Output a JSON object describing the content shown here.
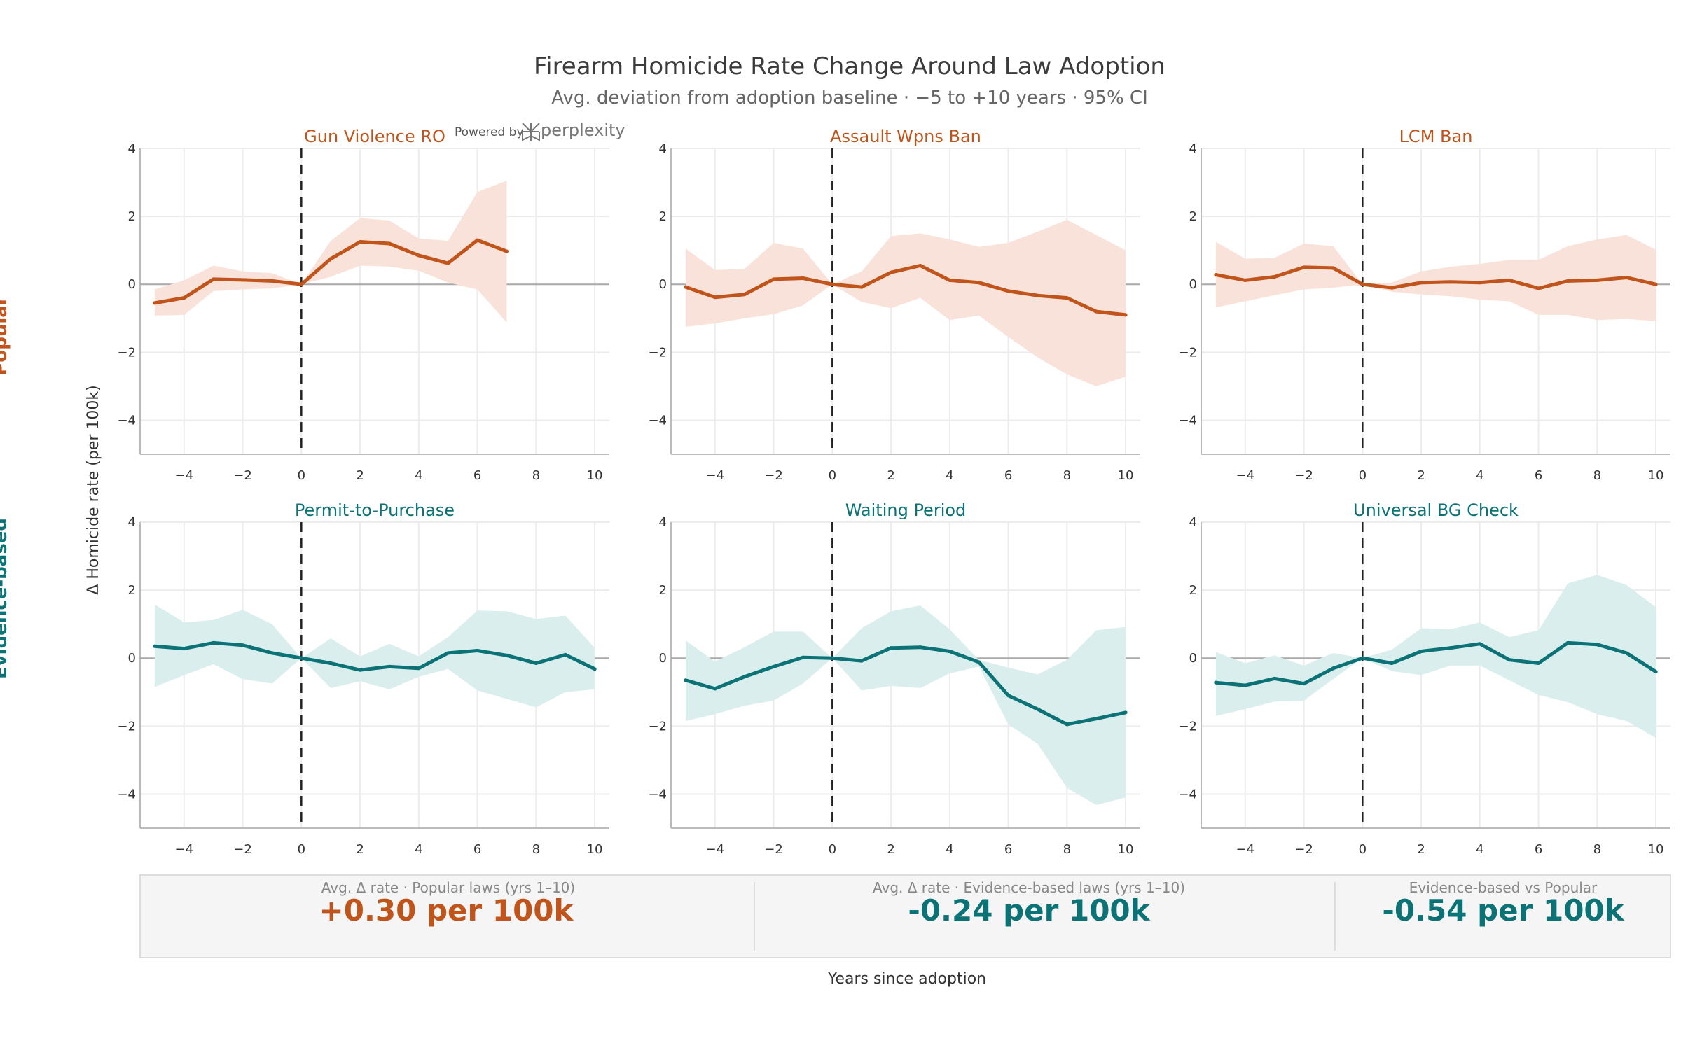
{
  "header": {
    "title": "Firearm Homicide Rate Change Around Law Adoption",
    "subtitle": "Avg. deviation from adoption baseline · −5 to +10 years · 95% CI"
  },
  "branding": {
    "prefix": "Powered by",
    "name": "perplexity"
  },
  "axes": {
    "ylabel": "Δ Homicide rate (per 100k)",
    "xlabel": "Years since adoption",
    "xticks": [
      -4,
      -2,
      0,
      2,
      4,
      6,
      8,
      10
    ],
    "yticks": [
      -4,
      -2,
      0,
      2,
      4
    ],
    "xlim": [
      -5.5,
      10.5
    ],
    "ylim": [
      -5,
      4
    ]
  },
  "groups": [
    {
      "name": "Popular",
      "color": "#c0541a",
      "band_color": "#f9e2d9"
    },
    {
      "name": "Evidence-based",
      "color": "#0b7275",
      "band_color": "#dbeeee"
    }
  ],
  "chart_data": [
    {
      "type": "line",
      "title": "Gun Violence RO",
      "group": "Popular",
      "x": [
        -5,
        -4,
        -3,
        -2,
        -1,
        0,
        1,
        2,
        3,
        4,
        5,
        6,
        7
      ],
      "values": [
        -0.55,
        -0.4,
        0.15,
        0.13,
        0.1,
        0,
        0.75,
        1.25,
        1.2,
        0.85,
        0.62,
        1.3,
        0.97
      ],
      "lower": [
        -0.92,
        -0.9,
        -0.2,
        -0.15,
        -0.12,
        0,
        0.22,
        0.55,
        0.52,
        0.4,
        0.05,
        -0.15,
        -1.12
      ],
      "upper": [
        -0.15,
        0.12,
        0.55,
        0.38,
        0.33,
        0,
        1.28,
        1.95,
        1.88,
        1.35,
        1.28,
        2.72,
        3.05
      ]
    },
    {
      "type": "line",
      "title": "Assault Wpns Ban",
      "group": "Popular",
      "x": [
        -5,
        -4,
        -3,
        -2,
        -1,
        0,
        1,
        2,
        3,
        4,
        5,
        6,
        7,
        8,
        9,
        10
      ],
      "values": [
        -0.08,
        -0.38,
        -0.3,
        0.15,
        0.18,
        0,
        -0.08,
        0.35,
        0.55,
        0.12,
        0.05,
        -0.2,
        -0.33,
        -0.4,
        -0.8,
        -0.9
      ],
      "lower": [
        -1.25,
        -1.15,
        -1.0,
        -0.88,
        -0.62,
        0,
        -0.52,
        -0.7,
        -0.4,
        -1.05,
        -0.92,
        -1.55,
        -2.15,
        -2.65,
        -3.0,
        -2.72
      ],
      "upper": [
        1.05,
        0.42,
        0.45,
        1.22,
        1.05,
        0,
        0.38,
        1.42,
        1.5,
        1.32,
        1.1,
        1.22,
        1.55,
        1.9,
        1.45,
        1.0
      ]
    },
    {
      "type": "line",
      "title": "LCM Ban",
      "group": "Popular",
      "x": [
        -5,
        -4,
        -3,
        -2,
        -1,
        0,
        1,
        2,
        3,
        4,
        5,
        6,
        7,
        8,
        9,
        10
      ],
      "values": [
        0.28,
        0.12,
        0.22,
        0.5,
        0.48,
        0,
        -0.1,
        0.05,
        0.07,
        0.05,
        0.12,
        -0.12,
        0.1,
        0.12,
        0.2,
        0
      ],
      "lower": [
        -0.68,
        -0.5,
        -0.32,
        -0.15,
        -0.1,
        0,
        -0.22,
        -0.3,
        -0.35,
        -0.45,
        -0.5,
        -0.9,
        -0.9,
        -1.05,
        -1.02,
        -1.08
      ],
      "upper": [
        1.25,
        0.75,
        0.78,
        1.2,
        1.12,
        0,
        0.05,
        0.38,
        0.52,
        0.6,
        0.72,
        0.72,
        1.12,
        1.32,
        1.45,
        1.02
      ]
    },
    {
      "type": "line",
      "title": "Permit-to-Purchase",
      "group": "Evidence-based",
      "x": [
        -5,
        -4,
        -3,
        -2,
        -1,
        0,
        1,
        2,
        3,
        4,
        5,
        6,
        7,
        8,
        9,
        10
      ],
      "values": [
        0.35,
        0.28,
        0.45,
        0.38,
        0.15,
        0,
        -0.15,
        -0.35,
        -0.25,
        -0.3,
        0.15,
        0.22,
        0.08,
        -0.15,
        0.1,
        -0.32
      ],
      "lower": [
        -0.85,
        -0.5,
        -0.18,
        -0.62,
        -0.75,
        0,
        -0.88,
        -0.68,
        -0.92,
        -0.55,
        -0.32,
        -0.95,
        -1.2,
        -1.45,
        -1.0,
        -0.92
      ],
      "upper": [
        1.58,
        1.05,
        1.12,
        1.42,
        1.0,
        0,
        0.58,
        0.05,
        0.42,
        0.05,
        0.62,
        1.4,
        1.38,
        1.15,
        1.25,
        0.3
      ]
    },
    {
      "type": "line",
      "title": "Waiting Period",
      "group": "Evidence-based",
      "x": [
        -5,
        -4,
        -3,
        -2,
        -1,
        0,
        1,
        2,
        3,
        4,
        5,
        6,
        7,
        8,
        9,
        10
      ],
      "values": [
        -0.65,
        -0.9,
        -0.55,
        -0.25,
        0.02,
        0,
        -0.08,
        0.3,
        0.32,
        0.2,
        -0.12,
        -1.1,
        -1.5,
        -1.95,
        -1.78,
        -1.6
      ],
      "lower": [
        -1.85,
        -1.65,
        -1.4,
        -1.25,
        -0.75,
        0,
        -0.95,
        -0.82,
        -0.88,
        -0.45,
        -0.25,
        -1.95,
        -2.52,
        -3.82,
        -4.32,
        -4.1
      ],
      "upper": [
        0.52,
        -0.1,
        0.32,
        0.78,
        0.78,
        0,
        0.88,
        1.38,
        1.55,
        0.85,
        -0.05,
        -0.28,
        -0.48,
        -0.05,
        0.82,
        0.92
      ]
    },
    {
      "type": "line",
      "title": "Universal BG Check",
      "group": "Evidence-based",
      "x": [
        -5,
        -4,
        -3,
        -2,
        -1,
        0,
        1,
        2,
        3,
        4,
        5,
        6,
        7,
        8,
        9,
        10
      ],
      "values": [
        -0.72,
        -0.8,
        -0.6,
        -0.75,
        -0.3,
        0,
        -0.15,
        0.2,
        0.3,
        0.42,
        -0.05,
        -0.15,
        0.45,
        0.4,
        0.15,
        -0.4
      ],
      "lower": [
        -1.7,
        -1.5,
        -1.28,
        -1.25,
        -0.62,
        0,
        -0.38,
        -0.5,
        -0.22,
        -0.22,
        -0.65,
        -1.08,
        -1.3,
        -1.65,
        -1.85,
        -2.35
      ],
      "upper": [
        0.18,
        -0.15,
        0.08,
        -0.22,
        0.15,
        0,
        0.25,
        0.88,
        0.85,
        1.05,
        0.62,
        0.82,
        2.2,
        2.45,
        2.15,
        1.5
      ]
    }
  ],
  "summary": [
    {
      "label": "Avg. Δ rate · Popular laws (yrs 1–10)",
      "value": "+0.30 per 100k",
      "color": "#c0541a"
    },
    {
      "label": "Avg. Δ rate · Evidence-based laws (yrs 1–10)",
      "value": "-0.24 per 100k",
      "color": "#0b7275"
    },
    {
      "label": "Evidence-based vs Popular",
      "value": "-0.54 per 100k",
      "color": "#0b7275"
    }
  ]
}
